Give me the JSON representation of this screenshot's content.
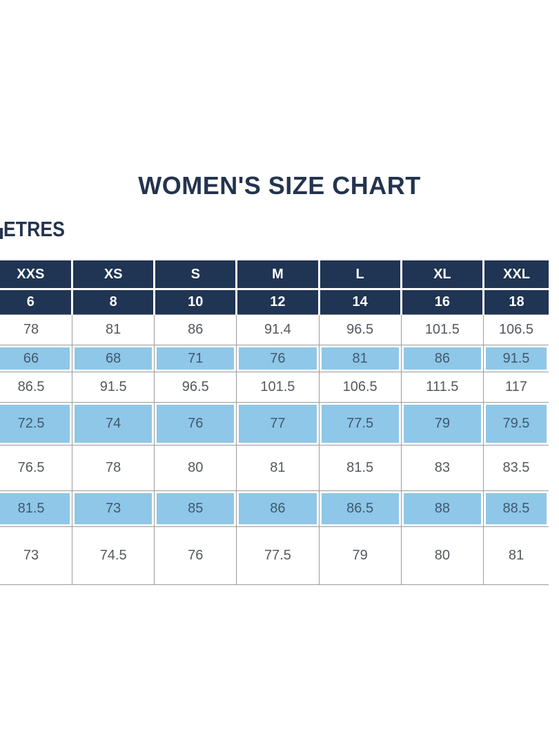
{
  "page": {
    "title": "WOMEN'S SIZE CHART",
    "unit_label_visible": "ETRES"
  },
  "colors": {
    "header_navy": "#203453",
    "row_light_blue": "#8ec7e8",
    "title_navy": "#24344f",
    "cell_text_gray": "#54585f",
    "blue_row_text": "#41586d",
    "grid_border": "#9b9b9b",
    "header_text": "#ffffff",
    "background": "#ffffff"
  },
  "chart_data": {
    "type": "table",
    "title": "WOMEN'S SIZE CHART",
    "column_headers_sizes": [
      "XXS",
      "XS",
      "S",
      "M",
      "L",
      "XL",
      "XXL"
    ],
    "column_headers_numeric": [
      "6",
      "8",
      "10",
      "12",
      "14",
      "16",
      "18"
    ],
    "rows": [
      [
        "78",
        "81",
        "86",
        "91.4",
        "96.5",
        "101.5",
        "106.5"
      ],
      [
        "66",
        "68",
        "71",
        "76",
        "81",
        "86",
        "91.5"
      ],
      [
        "86.5",
        "91.5",
        "96.5",
        "101.5",
        "106.5",
        "111.5",
        "117"
      ],
      [
        "72.5",
        "74",
        "76",
        "77",
        "77.5",
        "79",
        "79.5"
      ],
      [
        "76.5",
        "78",
        "80",
        "81",
        "81.5",
        "83",
        "83.5"
      ],
      [
        "81.5",
        "73",
        "85",
        "86",
        "86.5",
        "88",
        "88.5"
      ],
      [
        "73",
        "74.5",
        "76",
        "77.5",
        "79",
        "80",
        "81"
      ]
    ],
    "row_shading": [
      "white",
      "blue",
      "white",
      "blue",
      "white",
      "blue",
      "white"
    ],
    "layout_hints": {
      "left_edge_cropped": true,
      "header_rows": 2,
      "grid": true
    }
  }
}
